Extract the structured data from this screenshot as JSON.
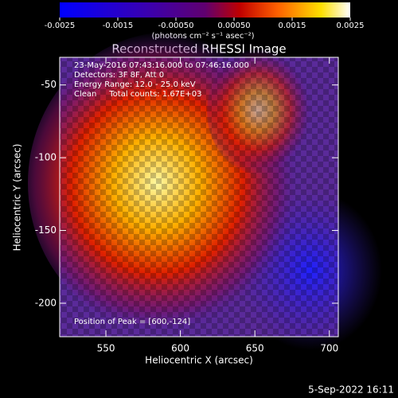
{
  "chart_data": {
    "type": "image",
    "title": "Reconstructed RHESSI Image",
    "x_label": "Heliocentric X (arcsec)",
    "y_label": "Heliocentric Y (arcsec)",
    "xlim": [
      519,
      706
    ],
    "xticks": [
      550,
      600,
      650,
      700
    ],
    "ylim": [
      -223,
      -31
    ],
    "yticks": [
      -50,
      -100,
      -150,
      -200
    ],
    "colorbar": {
      "label": "(photons cm⁻² s⁻¹ asec⁻²)",
      "clim": [
        -0.0025,
        0.0025
      ],
      "ticks": [
        -0.0025,
        -0.0015,
        {
          "value": -0.0005,
          "label": "-0.00050"
        },
        {
          "value": 0.0005,
          "label": "0.00050"
        },
        0.0015,
        0.0025
      ]
    },
    "annotations": [
      "23-May-2016 07:43:16.000 to 07:46:16.000",
      "Detectors: 3F 8F, Att 0",
      "Energy Range: 12.0 - 25.0 keV",
      "Clean     Total counts: 1.67E+03"
    ],
    "peak_label": "Position of Peak = [600,-124]",
    "footer": "5-Sep-2022 16:11"
  }
}
